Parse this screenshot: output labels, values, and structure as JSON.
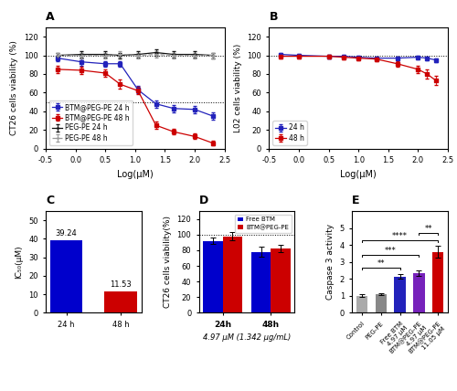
{
  "chart_data": [
    {
      "type": "line",
      "title": "A",
      "x_label": "Log(μM)",
      "y_label": "CT26 cells viability (%)",
      "xlim": [
        -0.5,
        2.5
      ],
      "xticks": [
        -0.5,
        0.0,
        0.5,
        1.0,
        1.5,
        2.0,
        2.5
      ],
      "ylim": [
        0,
        130
      ],
      "yticks": [
        0,
        20,
        40,
        60,
        80,
        100,
        120
      ],
      "reference_lines": [
        100,
        50
      ],
      "legend": "lower left",
      "series": [
        {
          "name": "BTM@PEG-PE 24 h",
          "color": "#2222bb",
          "marker": "square",
          "line_style": "solid",
          "x": [
            -0.3,
            0.1,
            0.5,
            0.75,
            1.05,
            1.35,
            1.65,
            2.0,
            2.3
          ],
          "values": [
            97,
            93,
            91,
            91,
            63,
            48,
            43,
            42,
            35
          ],
          "errors": [
            3,
            4,
            3,
            3,
            4,
            4,
            4,
            4,
            4
          ]
        },
        {
          "name": "BTM@PEG-PE 48 h",
          "color": "#cc0000",
          "marker": "square",
          "line_style": "solid",
          "x": [
            -0.3,
            0.1,
            0.5,
            0.75,
            1.05,
            1.35,
            1.65,
            2.0,
            2.3
          ],
          "values": [
            85,
            84,
            81,
            69,
            62,
            25,
            18,
            13,
            6
          ],
          "errors": [
            4,
            4,
            4,
            5,
            4,
            4,
            3,
            3,
            2
          ]
        },
        {
          "name": "PEG-PE 24 h",
          "color": "#111111",
          "marker": "plus",
          "line_style": "solid",
          "x": [
            -0.3,
            0.1,
            0.5,
            0.75,
            1.05,
            1.35,
            1.65,
            2.0,
            2.3
          ],
          "values": [
            100,
            101,
            101,
            100,
            101,
            103,
            101,
            101,
            100
          ],
          "errors": [
            3,
            3,
            3,
            3,
            3,
            3,
            3,
            3,
            3
          ]
        },
        {
          "name": "PEG-PE 48 h",
          "color": "#999999",
          "marker": "plus",
          "line_style": "dashed",
          "x": [
            -0.3,
            0.1,
            0.5,
            0.75,
            1.05,
            1.35,
            1.65,
            2.0,
            2.3
          ],
          "values": [
            100,
            100,
            100,
            101,
            100,
            101,
            100,
            100,
            100
          ],
          "errors": [
            3,
            3,
            3,
            3,
            3,
            3,
            3,
            3,
            3
          ]
        }
      ]
    },
    {
      "type": "line",
      "title": "B",
      "x_label": "Log(μM)",
      "y_label": "L02 cells viability (%)",
      "xlim": [
        -0.5,
        2.5
      ],
      "xticks": [
        -0.5,
        0.0,
        0.5,
        1.0,
        1.5,
        2.0,
        2.5
      ],
      "ylim": [
        0,
        130
      ],
      "yticks": [
        0,
        20,
        40,
        60,
        80,
        100,
        120
      ],
      "reference_lines": [
        100
      ],
      "legend": "lower left",
      "series": [
        {
          "name": "24 h",
          "color": "#2222bb",
          "marker": "square",
          "line_style": "solid",
          "x": [
            -0.3,
            0.0,
            0.5,
            0.75,
            1.0,
            1.3,
            1.65,
            2.0,
            2.15,
            2.3
          ],
          "values": [
            101,
            100,
            99,
            99,
            98,
            97,
            97,
            98,
            97,
            95
          ],
          "errors": [
            2,
            2,
            2,
            2,
            2,
            2,
            2,
            2,
            2,
            2
          ]
        },
        {
          "name": "48 h",
          "color": "#cc0000",
          "marker": "square",
          "line_style": "solid",
          "x": [
            -0.3,
            0.0,
            0.5,
            0.75,
            1.0,
            1.3,
            1.65,
            2.0,
            2.15,
            2.3
          ],
          "values": [
            99,
            99,
            99,
            98,
            97,
            96,
            91,
            85,
            80,
            73
          ],
          "errors": [
            2,
            2,
            2,
            2,
            2,
            2,
            3,
            4,
            5,
            5
          ]
        }
      ]
    },
    {
      "type": "bar",
      "title": "C",
      "y_label": "IC₅₀(μM)",
      "categories": [
        "24 h",
        "48 h"
      ],
      "values": [
        39.24,
        11.53
      ],
      "colors": [
        "#0000cc",
        "#cc0000"
      ],
      "data_labels": true,
      "ylim": [
        0,
        55
      ],
      "yticks": [
        0,
        10,
        20,
        30,
        40,
        50
      ]
    },
    {
      "type": "bar",
      "title": "D",
      "y_label": "CT26 cells viability(%)",
      "categories": [
        "24h",
        "48h"
      ],
      "series": [
        {
          "name": "Free BTM",
          "color": "#0000cc",
          "values": [
            92,
            78
          ],
          "errors": [
            4,
            6
          ]
        },
        {
          "name": "BTM@PEG-PE",
          "color": "#cc0000",
          "values": [
            98,
            82
          ],
          "errors": [
            5,
            5
          ]
        }
      ],
      "reference_lines": [
        100
      ],
      "legend": "upper right",
      "ylim": [
        0,
        130
      ],
      "yticks": [
        0,
        20,
        40,
        60,
        80,
        100,
        120
      ],
      "footnote": "4.97 μM (1.342 μg/mL)"
    },
    {
      "type": "bar",
      "title": "E",
      "y_label": "Caspase 3 activity",
      "categories": [
        "Control",
        "PEG-PE",
        "Free BTM\n4.97 μM",
        "BTM@PEG-PE\n4.97 μM",
        "BTM@PEG-PE\n11.05 μM"
      ],
      "values": [
        1.0,
        1.1,
        2.15,
        2.35,
        3.6
      ],
      "errors": [
        0.08,
        0.08,
        0.12,
        0.15,
        0.35
      ],
      "colors": [
        "#aaaaaa",
        "#888888",
        "#2222bb",
        "#7722bb",
        "#cc0000"
      ],
      "ylim": [
        0,
        6.0
      ],
      "yticks": [
        0,
        1,
        2,
        3,
        4,
        5
      ],
      "significance": [
        {
          "from": "Control",
          "to": "Free BTM\n4.97 μM",
          "y": 2.55,
          "label": "**"
        },
        {
          "from": "Control",
          "to": "BTM@PEG-PE\n4.97 μM",
          "y": 3.3,
          "label": "***"
        },
        {
          "from": "Control",
          "to": "BTM@PEG-PE\n11.05 μM",
          "y": 4.2,
          "label": "****"
        },
        {
          "from": "BTM@PEG-PE\n4.97 μM",
          "to": "BTM@PEG-PE\n11.05 μM",
          "y": 4.6,
          "label": "**"
        }
      ]
    }
  ]
}
